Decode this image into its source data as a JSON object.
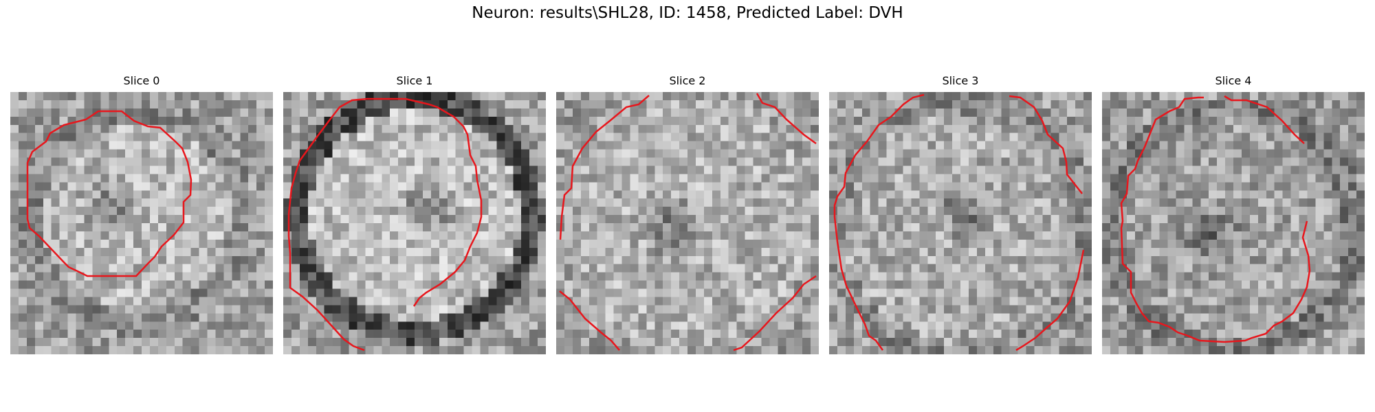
{
  "figure": {
    "title": "Neuron: results\\SHL28, ID: 1458, Predicted Label: DVH"
  },
  "slices": [
    {
      "label": "Slice 0"
    },
    {
      "label": "Slice 1"
    },
    {
      "label": "Slice 2"
    },
    {
      "label": "Slice 3"
    },
    {
      "label": "Slice 4"
    }
  ],
  "colors": {
    "contour": "#e8161c",
    "background": "#ffffff",
    "text": "#000000"
  },
  "colormap": "grayscale"
}
